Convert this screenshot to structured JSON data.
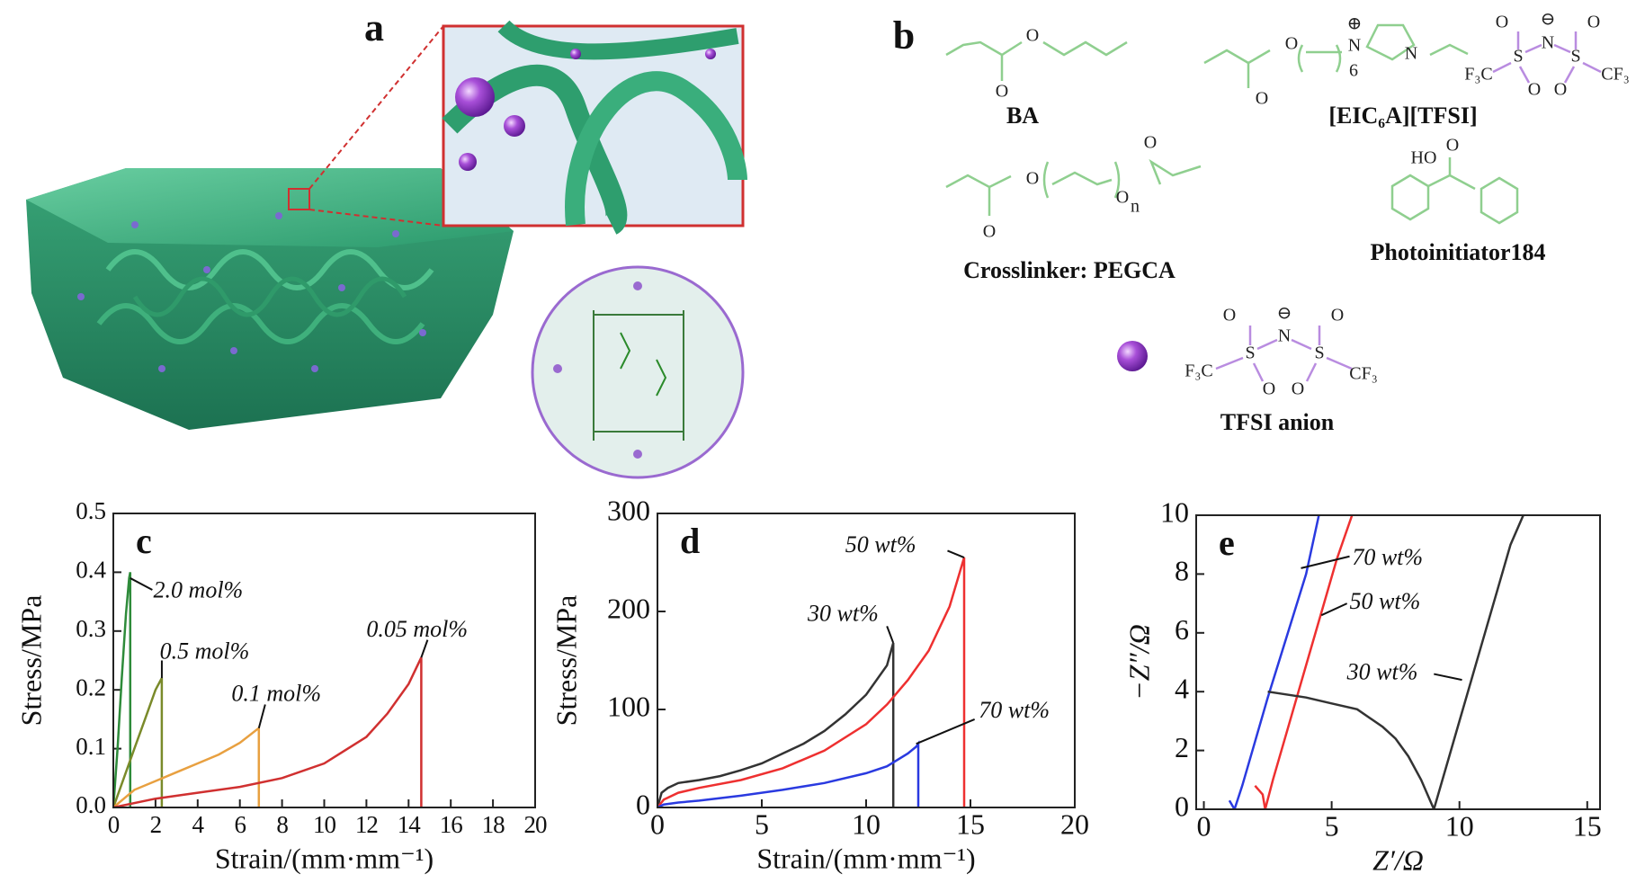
{
  "panel_a": {
    "label": "a"
  },
  "panel_b": {
    "label": "b",
    "ba": {
      "name": "BA",
      "atoms": [
        "O",
        "O"
      ]
    },
    "eic": {
      "name": "[EIC₆A][TFSI]",
      "atoms": [
        "O",
        "O",
        "6",
        "⊕",
        "N",
        "N",
        "O",
        "⊖",
        "N",
        "O",
        "F₃C",
        "S",
        "S",
        "CF₃",
        "O",
        "O"
      ]
    },
    "pegca": {
      "name": "Crosslinker: PEGCA",
      "atoms": [
        "O",
        "O",
        "O",
        "n",
        "O"
      ]
    },
    "pi": {
      "name": "Photoinitiator184",
      "atoms": [
        "HO",
        "O"
      ]
    },
    "tfsi": {
      "name": "TFSI anion",
      "atoms": [
        "O",
        "⊖",
        "N",
        "O",
        "F₃C",
        "S",
        "S",
        "CF₃",
        "O",
        "O"
      ]
    }
  },
  "chart_data": [
    {
      "type": "line",
      "panel_label": "c",
      "y_label": "Stress/MPa",
      "x_label": "Strain/(mm·mm⁻¹)",
      "xlim": [
        0,
        20
      ],
      "ylim": [
        0,
        0.5
      ],
      "xticks": [
        0,
        2,
        4,
        6,
        8,
        10,
        12,
        14,
        16,
        18,
        20
      ],
      "yticks": [
        {
          "value": 0,
          "label": "0.0"
        },
        0.1,
        0.2,
        0.3,
        0.4,
        0.5
      ],
      "series": [
        {
          "name": "2.0 mol%",
          "color": "#2e8b3a",
          "x": [
            0,
            0.2,
            0.4,
            0.6,
            0.75,
            0.8,
            0.8
          ],
          "values": [
            0,
            0.1,
            0.22,
            0.33,
            0.39,
            0.4,
            0
          ]
        },
        {
          "name": "0.5 mol%",
          "color": "#7a8a2a",
          "x": [
            0,
            0.5,
            1,
            1.5,
            2,
            2.3,
            2.3
          ],
          "values": [
            0,
            0.05,
            0.1,
            0.15,
            0.2,
            0.22,
            0
          ]
        },
        {
          "name": "0.1 mol%",
          "color": "#e8a040",
          "x": [
            0,
            1,
            2,
            3,
            4,
            5,
            6,
            6.9,
            6.9
          ],
          "values": [
            0,
            0.03,
            0.045,
            0.06,
            0.075,
            0.09,
            0.11,
            0.135,
            0
          ]
        },
        {
          "name": "0.05 mol%",
          "color": "#d03030",
          "x": [
            0,
            2,
            4,
            6,
            8,
            10,
            12,
            13,
            14,
            14.6,
            14.6
          ],
          "values": [
            0,
            0.015,
            0.025,
            0.035,
            0.05,
            0.075,
            0.12,
            0.16,
            0.21,
            0.255,
            0
          ]
        }
      ]
    },
    {
      "type": "line",
      "panel_label": "d",
      "y_label": "Stress/MPa",
      "x_label": "Strain/(mm·mm⁻¹)",
      "xlim": [
        0,
        20
      ],
      "ylim": [
        0,
        300
      ],
      "xticks": [
        0,
        5,
        10,
        15,
        20
      ],
      "yticks": [
        0,
        100,
        200,
        300
      ],
      "series": [
        {
          "name": "30 wt%",
          "color": "#333333",
          "x": [
            0,
            0.2,
            0.5,
            1,
            2,
            3,
            4,
            5,
            6,
            7,
            8,
            9,
            10,
            11,
            11.3,
            11.3
          ],
          "values": [
            0,
            15,
            20,
            25,
            28,
            32,
            38,
            45,
            55,
            65,
            78,
            95,
            115,
            145,
            168,
            0
          ]
        },
        {
          "name": "50 wt%",
          "color": "#ee3030",
          "x": [
            0,
            0.3,
            1,
            2,
            4,
            6,
            8,
            10,
            11,
            12,
            13,
            14,
            14.7,
            14.7
          ],
          "values": [
            0,
            8,
            15,
            20,
            28,
            40,
            58,
            85,
            105,
            130,
            160,
            205,
            255,
            0
          ]
        },
        {
          "name": "70 wt%",
          "color": "#2a3ae0",
          "x": [
            0,
            0.3,
            1,
            2,
            4,
            6,
            8,
            10,
            11,
            12,
            12.4,
            12.5,
            12.5
          ],
          "values": [
            0,
            3,
            5,
            7,
            12,
            18,
            25,
            35,
            42,
            55,
            62,
            65,
            0
          ]
        }
      ]
    },
    {
      "type": "line",
      "panel_label": "e",
      "y_label": "−Z″/Ω",
      "x_label": "Z′/Ω",
      "xlim": [
        -0.3,
        15.5
      ],
      "ylim": [
        0,
        10
      ],
      "xticks": [
        0,
        5,
        10,
        15
      ],
      "yticks": [
        0,
        2,
        4,
        6,
        8,
        10
      ],
      "series": [
        {
          "name": "70 wt%",
          "color": "#2a3ae0",
          "x": [
            1,
            1.2,
            1.5,
            2,
            2.5,
            3,
            3.5,
            4,
            4.5
          ],
          "values": [
            0.3,
            0,
            0.8,
            2.3,
            3.8,
            5.2,
            6.6,
            8,
            10
          ]
        },
        {
          "name": "50 wt%",
          "color": "#ee3030",
          "x": [
            2,
            2.3,
            2.4,
            2.7,
            3.2,
            3.7,
            4.2,
            4.7,
            5.2,
            5.8
          ],
          "values": [
            0.8,
            0.5,
            0,
            1,
            2.5,
            4,
            5.5,
            7,
            8.5,
            10
          ]
        },
        {
          "name": "30 wt%",
          "color": "#333333",
          "x": [
            2.5,
            4,
            5,
            6,
            7,
            7.5,
            8,
            8.5,
            9,
            9.5,
            10,
            10.5,
            11,
            11.5,
            12,
            12.5
          ],
          "values": [
            4,
            3.8,
            3.6,
            3.4,
            2.8,
            2.4,
            1.8,
            1,
            0,
            1.5,
            3,
            4.5,
            6,
            7.5,
            9,
            10
          ]
        }
      ]
    }
  ]
}
